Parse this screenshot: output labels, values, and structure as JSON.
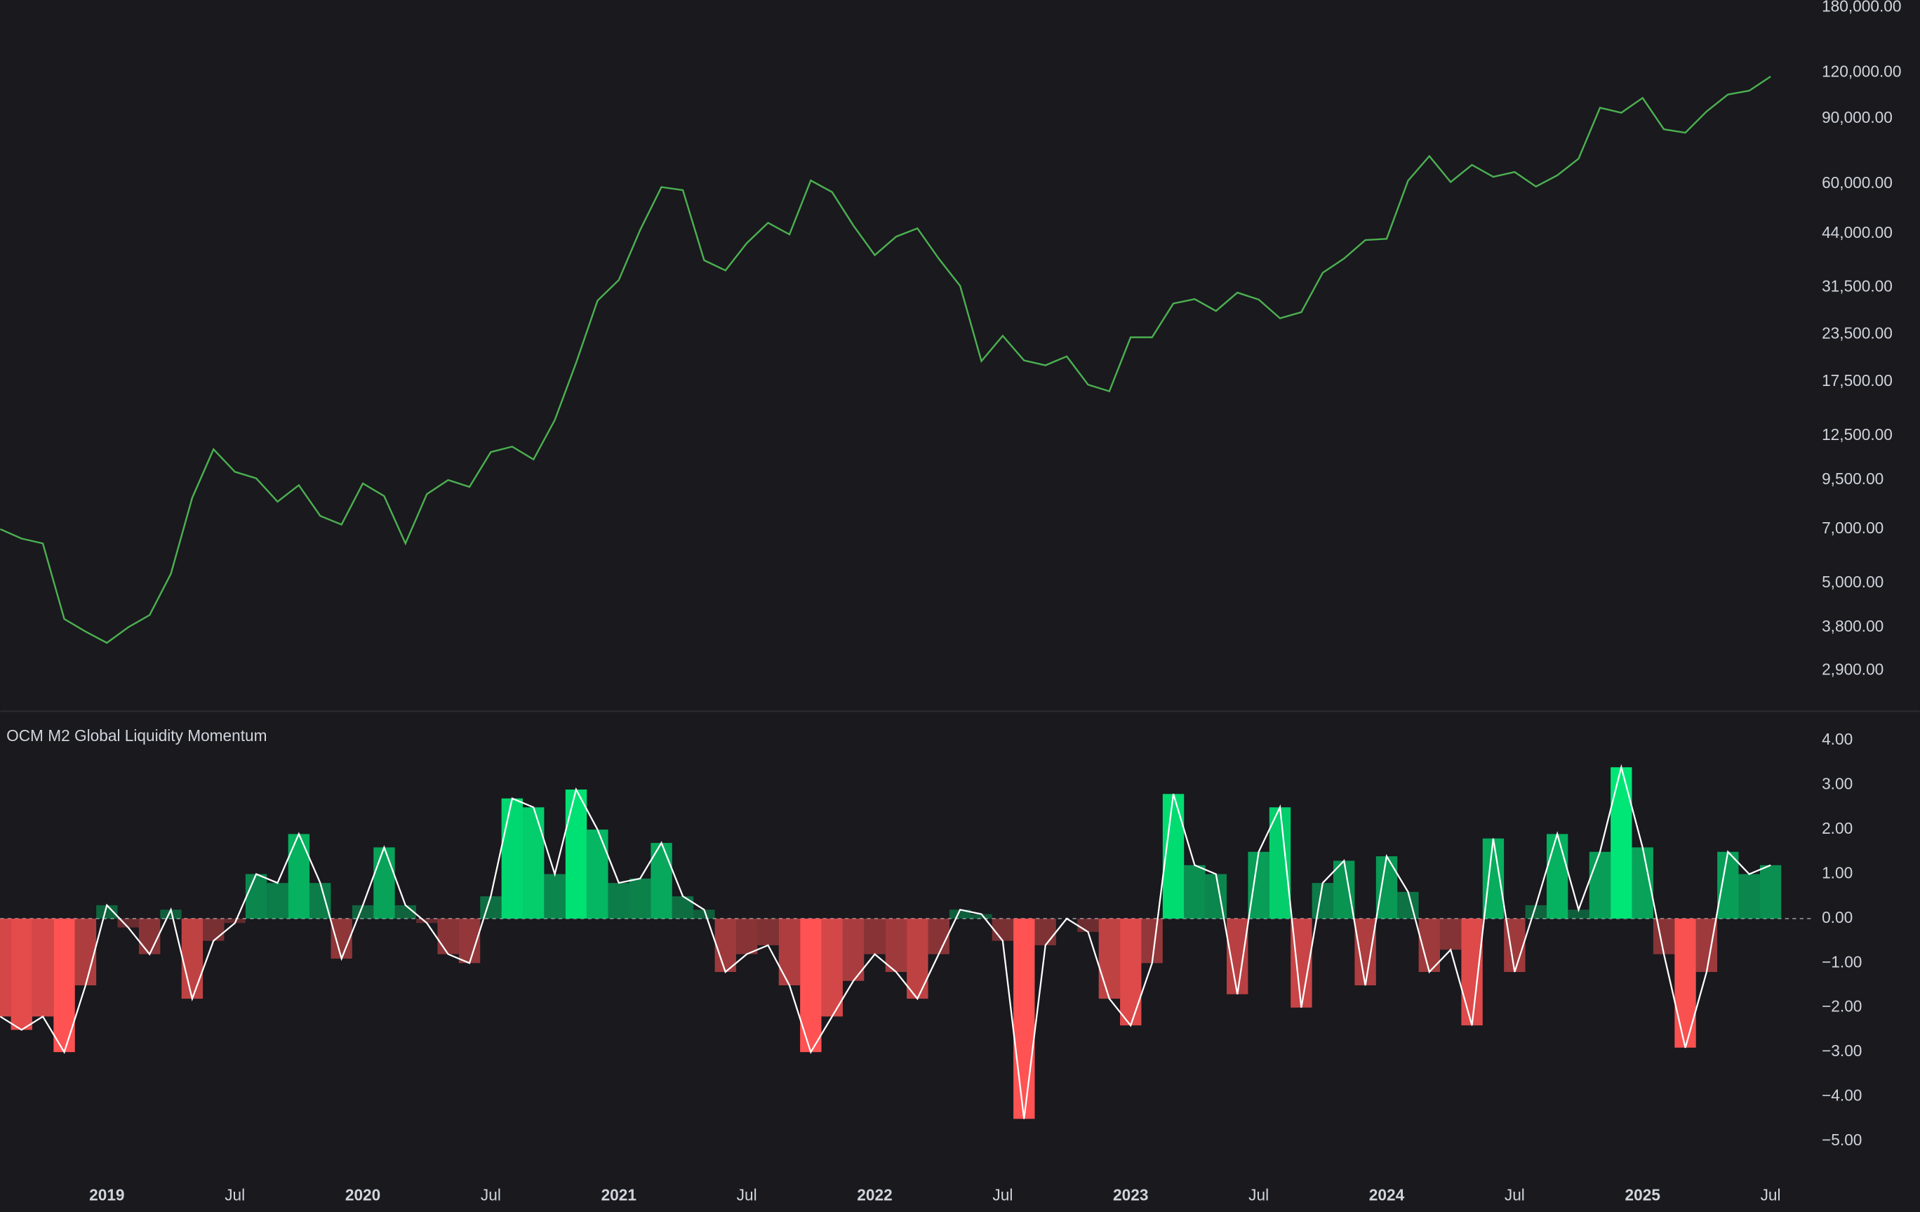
{
  "chart_data": [
    {
      "type": "line",
      "log_scale": true,
      "color": "#4caf50",
      "x": [
        "2018-08",
        "2018-09",
        "2018-10",
        "2018-11",
        "2018-12",
        "2019-01",
        "2019-02",
        "2019-03",
        "2019-04",
        "2019-05",
        "2019-06",
        "2019-07",
        "2019-08",
        "2019-09",
        "2019-10",
        "2019-11",
        "2019-12",
        "2020-01",
        "2020-02",
        "2020-03",
        "2020-04",
        "2020-05",
        "2020-06",
        "2020-07",
        "2020-08",
        "2020-09",
        "2020-10",
        "2020-11",
        "2020-12",
        "2021-01",
        "2021-02",
        "2021-03",
        "2021-04",
        "2021-05",
        "2021-06",
        "2021-07",
        "2021-08",
        "2021-09",
        "2021-10",
        "2021-11",
        "2021-12",
        "2022-01",
        "2022-02",
        "2022-03",
        "2022-04",
        "2022-05",
        "2022-06",
        "2022-07",
        "2022-08",
        "2022-09",
        "2022-10",
        "2022-11",
        "2022-12",
        "2023-01",
        "2023-02",
        "2023-03",
        "2023-04",
        "2023-05",
        "2023-06",
        "2023-07",
        "2023-08",
        "2023-09",
        "2023-10",
        "2023-11",
        "2023-12",
        "2024-01",
        "2024-02",
        "2024-03",
        "2024-04",
        "2024-05",
        "2024-06",
        "2024-07",
        "2024-08",
        "2024-09",
        "2024-10",
        "2024-11",
        "2024-12",
        "2025-01",
        "2025-02",
        "2025-03",
        "2025-04",
        "2025-05",
        "2025-06",
        "2025-07"
      ],
      "values": [
        7000,
        6600,
        6400,
        4000,
        3700,
        3450,
        3800,
        4100,
        5300,
        8500,
        11500,
        10000,
        9600,
        8300,
        9200,
        7600,
        7200,
        9300,
        8600,
        6400,
        8700,
        9500,
        9100,
        11300,
        11700,
        10800,
        13800,
        19700,
        29000,
        33000,
        45000,
        58800,
        57700,
        37300,
        35000,
        41500,
        47100,
        43800,
        61300,
        57000,
        46300,
        38500,
        43200,
        45500,
        37700,
        31800,
        19900,
        23300,
        20000,
        19400,
        20500,
        17200,
        16500,
        23100,
        23100,
        28500,
        29300,
        27200,
        30500,
        29200,
        26000,
        27000,
        34500,
        37700,
        42300,
        42600,
        61200,
        71300,
        60700,
        67500,
        62700,
        64600,
        59000,
        63300,
        70200,
        96400,
        93400,
        102400,
        84300,
        82500,
        94200,
        104600,
        107100,
        117000
      ],
      "xlim": [
        "2018-08",
        "2025-09"
      ],
      "ylim": [
        2270,
        188400
      ],
      "yticks": [
        {
          "value": 180000,
          "label": "180,000.00"
        },
        {
          "value": 120000,
          "label": "120,000.00"
        },
        {
          "value": 90000,
          "label": "90,000.00"
        },
        {
          "value": 60000,
          "label": "60,000.00"
        },
        {
          "value": 44000,
          "label": "44,000.00"
        },
        {
          "value": 31500,
          "label": "31,500.00"
        },
        {
          "value": 23500,
          "label": "23,500.00"
        },
        {
          "value": 17500,
          "label": "17,500.00"
        },
        {
          "value": 12500,
          "label": "12,500.00"
        },
        {
          "value": 9500,
          "label": "9,500.00"
        },
        {
          "value": 7000,
          "label": "7,000.00"
        },
        {
          "value": 5000,
          "label": "5,000.00"
        },
        {
          "value": 3800,
          "label": "3,800.00"
        },
        {
          "value": 2900,
          "label": "2,900.00"
        }
      ]
    },
    {
      "type": "bar",
      "title": "OCM M2 Global Liquidity Momentum",
      "positive_color": "#00e676",
      "negative_color": "#ff5252",
      "line_color": "#ffffff",
      "x": [
        "2018-08",
        "2018-09",
        "2018-10",
        "2018-11",
        "2018-12",
        "2019-01",
        "2019-02",
        "2019-03",
        "2019-04",
        "2019-05",
        "2019-06",
        "2019-07",
        "2019-08",
        "2019-09",
        "2019-10",
        "2019-11",
        "2019-12",
        "2020-01",
        "2020-02",
        "2020-03",
        "2020-04",
        "2020-05",
        "2020-06",
        "2020-07",
        "2020-08",
        "2020-09",
        "2020-10",
        "2020-11",
        "2020-12",
        "2021-01",
        "2021-02",
        "2021-03",
        "2021-04",
        "2021-05",
        "2021-06",
        "2021-07",
        "2021-08",
        "2021-09",
        "2021-10",
        "2021-11",
        "2021-12",
        "2022-01",
        "2022-02",
        "2022-03",
        "2022-04",
        "2022-05",
        "2022-06",
        "2022-07",
        "2022-08",
        "2022-09",
        "2022-10",
        "2022-11",
        "2022-12",
        "2023-01",
        "2023-02",
        "2023-03",
        "2023-04",
        "2023-05",
        "2023-06",
        "2023-07",
        "2023-08",
        "2023-09",
        "2023-10",
        "2023-11",
        "2023-12",
        "2024-01",
        "2024-02",
        "2024-03",
        "2024-04",
        "2024-05",
        "2024-06",
        "2024-07",
        "2024-08",
        "2024-09",
        "2024-10",
        "2024-11",
        "2024-12",
        "2025-01",
        "2025-02",
        "2025-03",
        "2025-04",
        "2025-05",
        "2025-06",
        "2025-07"
      ],
      "values": [
        -2.2,
        -2.5,
        -2.2,
        -3.0,
        -1.5,
        0.3,
        -0.2,
        -0.8,
        0.2,
        -1.8,
        -0.5,
        -0.1,
        1.0,
        0.8,
        1.9,
        0.8,
        -0.9,
        0.3,
        1.6,
        0.3,
        -0.1,
        -0.8,
        -1.0,
        0.5,
        2.7,
        2.5,
        1.0,
        2.9,
        2.0,
        0.8,
        0.9,
        1.7,
        0.5,
        0.2,
        -1.2,
        -0.8,
        -0.6,
        -1.5,
        -3.0,
        -2.2,
        -1.4,
        -0.8,
        -1.2,
        -1.8,
        -0.8,
        0.2,
        0.1,
        -0.5,
        -4.5,
        -0.6,
        0,
        -0.3,
        -1.8,
        -2.4,
        -1.0,
        2.8,
        1.2,
        1.0,
        -1.7,
        1.5,
        2.5,
        -2.0,
        0.8,
        1.3,
        -1.5,
        1.4,
        0.6,
        -1.2,
        -0.7,
        -2.4,
        1.8,
        -1.2,
        0.3,
        1.9,
        0.2,
        1.5,
        3.4,
        1.6,
        -0.8,
        -2.9,
        -1.2,
        1.5,
        1.0,
        1.2
      ],
      "xlim": [
        "2018-08",
        "2025-09"
      ],
      "ylim": [
        -5.63,
        4.63
      ],
      "yticks": [
        {
          "value": 4,
          "label": "4.00"
        },
        {
          "value": 3,
          "label": "3.00"
        },
        {
          "value": 2,
          "label": "2.00"
        },
        {
          "value": 1,
          "label": "1.00"
        },
        {
          "value": 0,
          "label": "0.00"
        },
        {
          "value": -1,
          "label": "−1.00"
        },
        {
          "value": -2,
          "label": "−2.00"
        },
        {
          "value": -3,
          "label": "−3.00"
        },
        {
          "value": -4,
          "label": "−4.00"
        },
        {
          "value": -5,
          "label": "−5.00"
        }
      ],
      "xticks": [
        {
          "value": "2019-01",
          "label": "2019"
        },
        {
          "value": "2019-07",
          "label": "Jul"
        },
        {
          "value": "2020-01",
          "label": "2020"
        },
        {
          "value": "2020-07",
          "label": "Jul"
        },
        {
          "value": "2021-01",
          "label": "2021"
        },
        {
          "value": "2021-07",
          "label": "Jul"
        },
        {
          "value": "2022-01",
          "label": "2022"
        },
        {
          "value": "2022-07",
          "label": "Jul"
        },
        {
          "value": "2023-01",
          "label": "2023"
        },
        {
          "value": "2023-07",
          "label": "Jul"
        },
        {
          "value": "2024-01",
          "label": "2024"
        },
        {
          "value": "2024-07",
          "label": "Jul"
        },
        {
          "value": "2025-01",
          "label": "2025"
        },
        {
          "value": "2025-07",
          "label": "Jul"
        }
      ]
    }
  ]
}
